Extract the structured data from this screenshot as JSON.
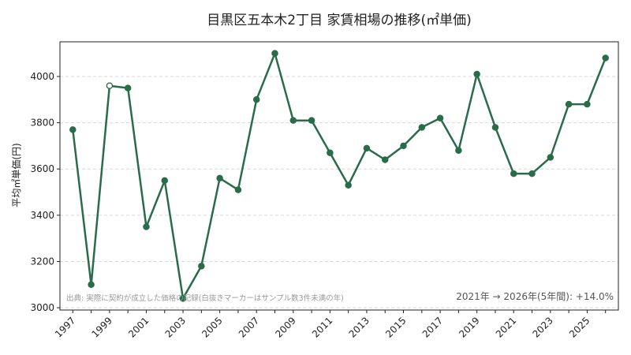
{
  "chart_data": {
    "type": "line",
    "title": "目黒区五本木2丁目 家賃相場の推移(㎡単価)",
    "ylabel": "平均㎡単価(円)",
    "xlabel": "",
    "x": [
      1997,
      1998,
      1999,
      2000,
      2001,
      2002,
      2003,
      2004,
      2005,
      2006,
      2007,
      2008,
      2009,
      2010,
      2011,
      2012,
      2013,
      2014,
      2015,
      2016,
      2017,
      2018,
      2019,
      2020,
      2021,
      2022,
      2023,
      2024,
      2025,
      2026
    ],
    "values": [
      3770,
      3100,
      3960,
      3950,
      3350,
      3550,
      3040,
      3180,
      3560,
      3510,
      3900,
      4100,
      3810,
      3810,
      3670,
      3530,
      3690,
      3640,
      3700,
      3780,
      3820,
      3680,
      4010,
      3780,
      3580,
      3580,
      3650,
      3880,
      3880,
      4080
    ],
    "low_sample_points": [
      1999
    ],
    "x_tick_labels": [
      "1997",
      "1999",
      "2001",
      "2003",
      "2005",
      "2007",
      "2009",
      "2011",
      "2013",
      "2015",
      "2017",
      "2019",
      "2021",
      "2023",
      "2025"
    ],
    "y_ticks": [
      3000,
      3200,
      3400,
      3600,
      3800,
      4000
    ],
    "ylim": [
      2990,
      4150
    ],
    "xlim": [
      1996.3,
      2026.7
    ],
    "grid": "horizontal-dashed",
    "line_color": "#2a6b4a",
    "source_note": "出典: 実際に契約が成立した価格の記録(白抜きマーカーはサンプル数3件未満の年)",
    "summary": "2021年 → 2026年(5年間): +14.0%"
  }
}
